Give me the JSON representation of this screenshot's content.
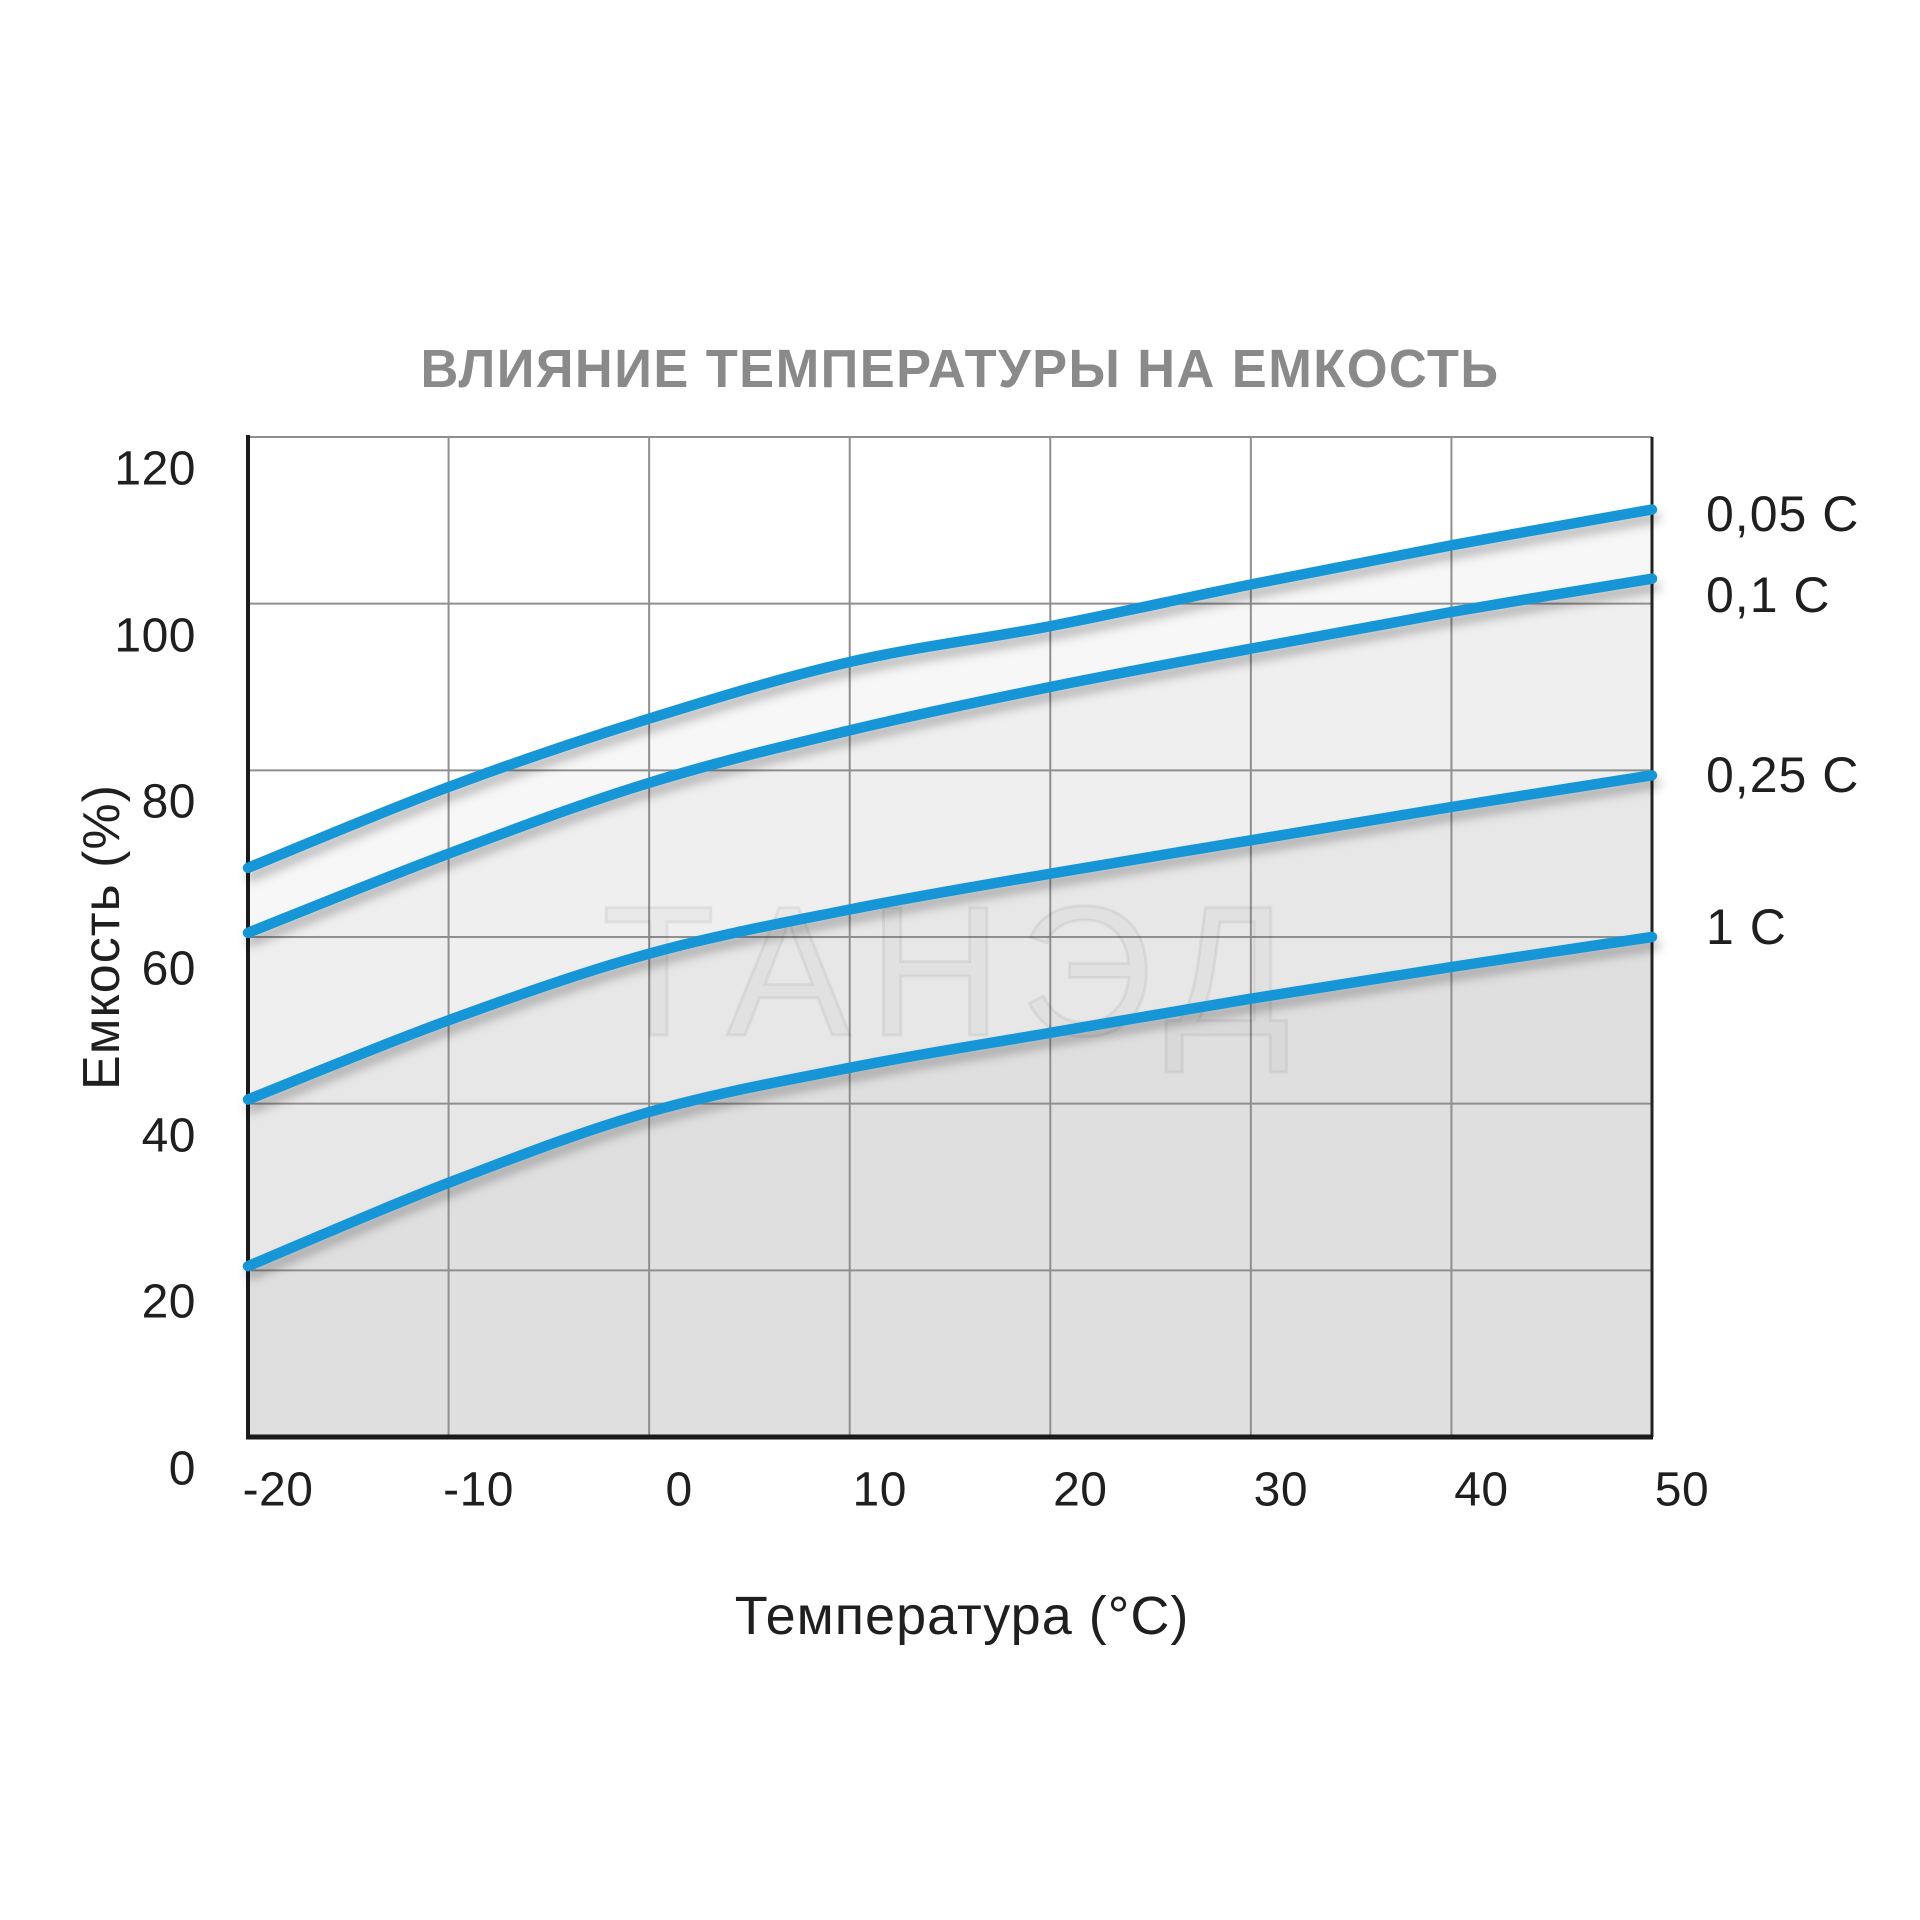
{
  "chart_data": {
    "type": "line",
    "title": "ВЛИЯНИЕ ТЕМПЕРАТУРЫ НА ЕМКОСТЬ",
    "xlabel": "Температура (°C)",
    "ylabel": "Емкость (%)",
    "watermark": "ТАНЭД",
    "x": [
      -20,
      -10,
      0,
      10,
      20,
      30,
      40,
      50
    ],
    "x_tick_labels": [
      "-20",
      "-10",
      "0",
      "10",
      "20",
      "30",
      "40",
      "50"
    ],
    "y_ticks": [
      0,
      20,
      40,
      60,
      80,
      100,
      120
    ],
    "y_tick_labels": [
      "0",
      "20",
      "40",
      "60",
      "80",
      "100",
      "120"
    ],
    "xlim": [
      -20,
      50
    ],
    "ylim": [
      0,
      120
    ],
    "grid": true,
    "legend_position": "right-of-plot",
    "line_color": "#1796D6",
    "series": [
      {
        "name": "0,05 C",
        "values": [
          68.3,
          78,
          86.2,
          93,
          97.3,
          102.3,
          107,
          111.3
        ]
      },
      {
        "name": "0,1 C",
        "values": [
          60.5,
          70,
          78.5,
          84.8,
          90,
          94.6,
          99,
          103
        ]
      },
      {
        "name": "0,25 C",
        "values": [
          40.5,
          50,
          58,
          63.3,
          67.6,
          71.6,
          75.6,
          79.4
        ]
      },
      {
        "name": "1 C",
        "values": [
          20.5,
          30.5,
          39,
          44.3,
          48.5,
          52.6,
          56.4,
          60
        ]
      }
    ]
  }
}
